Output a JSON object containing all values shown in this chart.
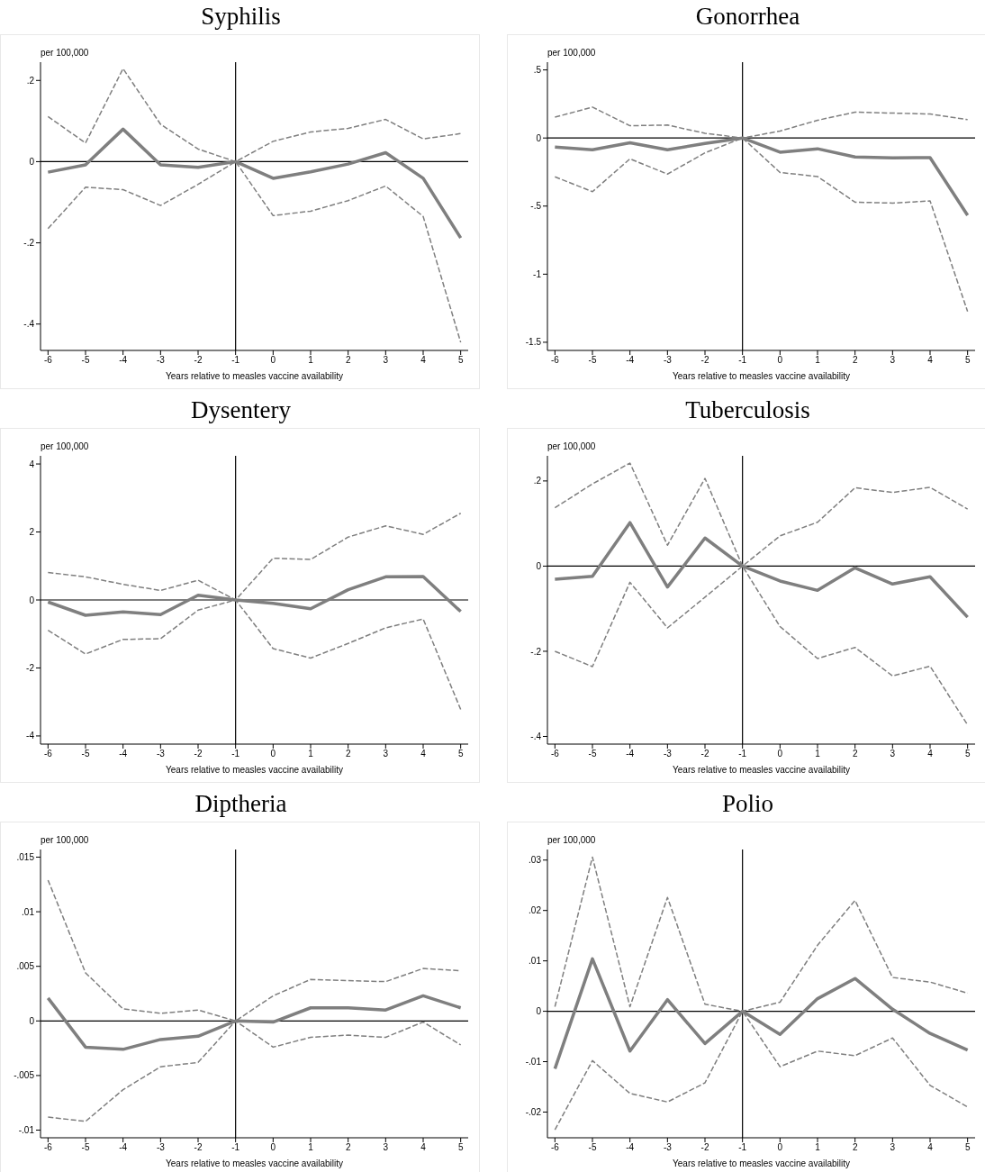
{
  "chart_data": [
    {
      "type": "line",
      "title": "Syphilis",
      "ylabel": "per 100,000",
      "xlabel": "Years relative to measles vaccine availability",
      "x": [
        -6,
        -5,
        -4,
        -3,
        -2,
        -1,
        0,
        1,
        2,
        3,
        4,
        5
      ],
      "xlim": [
        -6.2,
        5.2
      ],
      "xticks": [
        -6,
        -5,
        -4,
        -3,
        -2,
        -1,
        0,
        1,
        2,
        3,
        4,
        5
      ],
      "ylim": [
        -0.465,
        0.245
      ],
      "yticks": [
        {
          "value": -0.4,
          "label": "-.4"
        },
        {
          "value": -0.2,
          "label": "-.2"
        },
        0,
        {
          "value": 0.2,
          "label": ".2"
        }
      ],
      "grid": false,
      "legend": false,
      "ref_lines": [
        {
          "axis": "x",
          "value": -1,
          "color": "#000000"
        },
        {
          "axis": "y",
          "value": 0,
          "color": "#000000"
        }
      ],
      "series": [
        {
          "color": "#7f7f7f",
          "line_style": "dashed",
          "values": [
            0.111,
            0.046,
            0.229,
            0.092,
            0.031,
            0,
            0.05,
            0.073,
            0.082,
            0.104,
            0.056,
            0.069
          ]
        },
        {
          "color": "#7f7f7f",
          "line_style": "solid",
          "values": [
            -0.026,
            -0.008,
            0.08,
            -0.008,
            -0.014,
            0,
            -0.041,
            -0.025,
            -0.006,
            0.022,
            -0.041,
            -0.188
          ]
        },
        {
          "color": "#7f7f7f",
          "line_style": "dashed",
          "values": [
            -0.165,
            -0.063,
            -0.069,
            -0.108,
            -0.056,
            0,
            -0.133,
            -0.122,
            -0.096,
            -0.06,
            -0.135,
            -0.445
          ]
        }
      ]
    },
    {
      "type": "line",
      "title": "Gonorrhea",
      "ylabel": "per 100,000",
      "xlabel": "Years relative to measles vaccine availability",
      "x": [
        -6,
        -5,
        -4,
        -3,
        -2,
        -1,
        0,
        1,
        2,
        3,
        4,
        5
      ],
      "xlim": [
        -6.2,
        5.2
      ],
      "xticks": [
        -6,
        -5,
        -4,
        -3,
        -2,
        -1,
        0,
        1,
        2,
        3,
        4,
        5
      ],
      "ylim": [
        -1.56,
        0.557
      ],
      "yticks": [
        {
          "value": -1.5,
          "label": "-1.5"
        },
        -1,
        {
          "value": -0.5,
          "label": "-.5"
        },
        0,
        {
          "value": 0.5,
          "label": ".5"
        }
      ],
      "grid": false,
      "legend": false,
      "ref_lines": [
        {
          "axis": "x",
          "value": -1,
          "color": "#000000"
        },
        {
          "axis": "y",
          "value": 0,
          "color": "#000000"
        }
      ],
      "series": [
        {
          "color": "#7f7f7f",
          "line_style": "dashed",
          "values": [
            0.153,
            0.227,
            0.09,
            0.095,
            0.035,
            0,
            0.051,
            0.13,
            0.19,
            0.183,
            0.176,
            0.135
          ]
        },
        {
          "color": "#7f7f7f",
          "line_style": "solid",
          "values": [
            -0.067,
            -0.086,
            -0.035,
            -0.086,
            -0.04,
            0,
            -0.104,
            -0.079,
            -0.139,
            -0.146,
            -0.144,
            -0.568
          ]
        },
        {
          "color": "#7f7f7f",
          "line_style": "dashed",
          "values": [
            -0.285,
            -0.394,
            -0.153,
            -0.265,
            -0.109,
            0,
            -0.253,
            -0.283,
            -0.471,
            -0.478,
            -0.462,
            -1.274
          ]
        }
      ]
    },
    {
      "type": "line",
      "title": "Dysentery",
      "ylabel": "per 100,000",
      "xlabel": "Years relative to measles vaccine availability",
      "x": [
        -6,
        -5,
        -4,
        -3,
        -2,
        -1,
        0,
        1,
        2,
        3,
        4,
        5
      ],
      "xlim": [
        -6.2,
        5.2
      ],
      "xticks": [
        -6,
        -5,
        -4,
        -3,
        -2,
        -1,
        0,
        1,
        2,
        3,
        4,
        5
      ],
      "ylim": [
        -4.24,
        4.24
      ],
      "yticks": [
        -4,
        -2,
        0,
        2,
        4
      ],
      "grid": false,
      "legend": false,
      "ref_lines": [
        {
          "axis": "x",
          "value": -1,
          "color": "#000000"
        },
        {
          "axis": "y",
          "value": 0,
          "color": "#000000"
        }
      ],
      "series": [
        {
          "color": "#7f7f7f",
          "line_style": "dashed",
          "values": [
            0.81,
            0.68,
            0.46,
            0.28,
            0.58,
            0,
            1.23,
            1.19,
            1.85,
            2.18,
            1.93,
            2.55
          ]
        },
        {
          "color": "#7f7f7f",
          "line_style": "solid",
          "values": [
            -0.06,
            -0.45,
            -0.35,
            -0.43,
            0.14,
            0,
            -0.1,
            -0.26,
            0.3,
            0.68,
            0.69,
            -0.34
          ]
        },
        {
          "color": "#7f7f7f",
          "line_style": "dashed",
          "values": [
            -0.89,
            -1.59,
            -1.16,
            -1.14,
            -0.3,
            0,
            -1.43,
            -1.71,
            -1.28,
            -0.82,
            -0.56,
            -3.22
          ]
        }
      ]
    },
    {
      "type": "line",
      "title": "Tuberculosis",
      "ylabel": "per 100,000",
      "xlabel": "Years relative to measles vaccine availability",
      "x": [
        -6,
        -5,
        -4,
        -3,
        -2,
        -1,
        0,
        1,
        2,
        3,
        4,
        5
      ],
      "xlim": [
        -6.2,
        5.2
      ],
      "xticks": [
        -6,
        -5,
        -4,
        -3,
        -2,
        -1,
        0,
        1,
        2,
        3,
        4,
        5
      ],
      "ylim": [
        -0.418,
        0.259
      ],
      "yticks": [
        {
          "value": -0.4,
          "label": "-.4"
        },
        {
          "value": -0.2,
          "label": "-.2"
        },
        0,
        {
          "value": 0.2,
          "label": ".2"
        }
      ],
      "grid": false,
      "legend": false,
      "ref_lines": [
        {
          "axis": "x",
          "value": -1,
          "color": "#000000"
        },
        {
          "axis": "y",
          "value": 0,
          "color": "#000000"
        }
      ],
      "series": [
        {
          "color": "#7f7f7f",
          "line_style": "dashed",
          "values": [
            0.137,
            0.193,
            0.242,
            0.049,
            0.206,
            0,
            0.071,
            0.103,
            0.184,
            0.173,
            0.185,
            0.134
          ]
        },
        {
          "color": "#7f7f7f",
          "line_style": "solid",
          "values": [
            -0.031,
            -0.024,
            0.102,
            -0.049,
            0.066,
            0,
            -0.035,
            -0.057,
            -0.004,
            -0.042,
            -0.025,
            -0.12
          ]
        },
        {
          "color": "#7f7f7f",
          "line_style": "dashed",
          "values": [
            -0.2,
            -0.236,
            -0.038,
            -0.145,
            -0.073,
            0,
            -0.142,
            -0.217,
            -0.191,
            -0.258,
            -0.235,
            -0.373
          ]
        }
      ]
    },
    {
      "type": "line",
      "title": "Diptheria",
      "ylabel": "per 100,000",
      "xlabel": "Years relative to measles vaccine availability",
      "x": [
        -6,
        -5,
        -4,
        -3,
        -2,
        -1,
        0,
        1,
        2,
        3,
        4,
        5
      ],
      "xlim": [
        -6.2,
        5.2
      ],
      "xticks": [
        -6,
        -5,
        -4,
        -3,
        -2,
        -1,
        0,
        1,
        2,
        3,
        4,
        5
      ],
      "ylim": [
        -0.0107,
        0.0157
      ],
      "yticks": [
        {
          "value": -0.01,
          "label": "-.01"
        },
        {
          "value": -0.005,
          "label": "-.005"
        },
        0,
        {
          "value": 0.005,
          "label": ".005"
        },
        {
          "value": 0.01,
          "label": ".01"
        },
        {
          "value": 0.015,
          "label": ".015"
        }
      ],
      "grid": false,
      "legend": false,
      "ref_lines": [
        {
          "axis": "x",
          "value": -1,
          "color": "#000000"
        },
        {
          "axis": "y",
          "value": 0,
          "color": "#000000"
        }
      ],
      "series": [
        {
          "color": "#7f7f7f",
          "line_style": "dashed",
          "values": [
            0.0129,
            0.0044,
            0.0011,
            0.0007,
            0.001,
            0,
            0.0023,
            0.0038,
            0.0037,
            0.0036,
            0.0048,
            0.0046
          ]
        },
        {
          "color": "#7f7f7f",
          "line_style": "solid",
          "values": [
            0.0021,
            -0.0024,
            -0.0026,
            -0.0017,
            -0.0014,
            0,
            -0.0001,
            0.0012,
            0.0012,
            0.001,
            0.0023,
            0.0012
          ]
        },
        {
          "color": "#7f7f7f",
          "line_style": "dashed",
          "values": [
            -0.0088,
            -0.0092,
            -0.0063,
            -0.0042,
            -0.0038,
            0,
            -0.0024,
            -0.0015,
            -0.0013,
            -0.0015,
            -0.0001,
            -0.0022
          ]
        }
      ]
    },
    {
      "type": "line",
      "title": "Polio",
      "ylabel": "per 100,000",
      "xlabel": "Years relative to measles vaccine availability",
      "x": [
        -6,
        -5,
        -4,
        -3,
        -2,
        -1,
        0,
        1,
        2,
        3,
        4,
        5
      ],
      "xlim": [
        -6.2,
        5.2
      ],
      "xticks": [
        -6,
        -5,
        -4,
        -3,
        -2,
        -1,
        0,
        1,
        2,
        3,
        4,
        5
      ],
      "ylim": [
        -0.0251,
        0.0321
      ],
      "yticks": [
        {
          "value": -0.02,
          "label": "-.02"
        },
        {
          "value": -0.01,
          "label": "-.01"
        },
        0,
        {
          "value": 0.01,
          "label": ".01"
        },
        {
          "value": 0.02,
          "label": ".02"
        },
        {
          "value": 0.03,
          "label": ".03"
        }
      ],
      "grid": false,
      "legend": false,
      "ref_lines": [
        {
          "axis": "x",
          "value": -1,
          "color": "#000000"
        },
        {
          "axis": "y",
          "value": 0,
          "color": "#000000"
        }
      ],
      "series": [
        {
          "color": "#7f7f7f",
          "line_style": "dashed",
          "values": [
            0.0009,
            0.0306,
            0.0009,
            0.0226,
            0.0014,
            0,
            0.0018,
            0.0131,
            0.022,
            0.0067,
            0.0058,
            0.0036
          ]
        },
        {
          "color": "#7f7f7f",
          "line_style": "solid",
          "values": [
            -0.0114,
            0.0104,
            -0.0079,
            0.0023,
            -0.0064,
            0,
            -0.0046,
            0.0025,
            0.0065,
            0.0004,
            -0.0044,
            -0.0077
          ]
        },
        {
          "color": "#7f7f7f",
          "line_style": "dashed",
          "values": [
            -0.0235,
            -0.0098,
            -0.0163,
            -0.018,
            -0.0142,
            0,
            -0.011,
            -0.0079,
            -0.0088,
            -0.0053,
            -0.0147,
            -0.019
          ]
        }
      ]
    }
  ]
}
